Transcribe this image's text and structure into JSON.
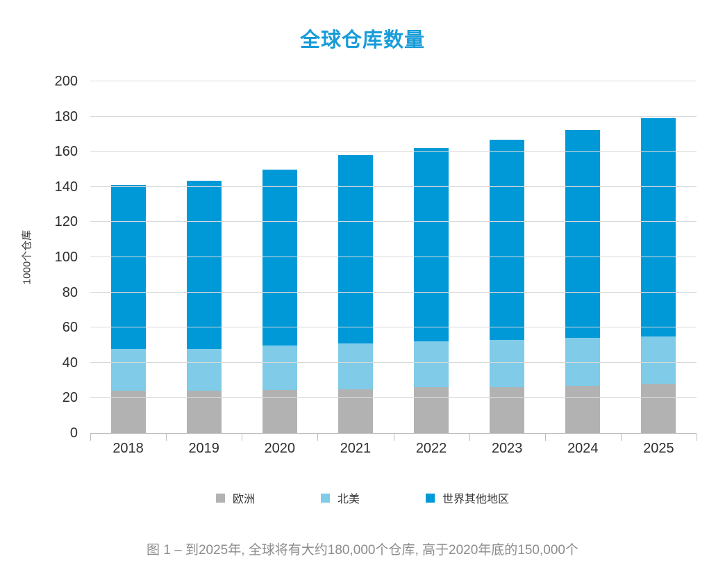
{
  "title": "全球仓库数量",
  "caption": "图 1 – 到2025年, 全球将有大约180,000个仓库, 高于2020年底的150,000个",
  "colors": {
    "title": "#189cd9",
    "europe": "#b2b2b2",
    "north_america": "#7fcbe8",
    "rest_of_world": "#0099d8",
    "gridline": "#d9d9d9",
    "axis": "#bdbdbd",
    "tick_label": "#2e2e2e",
    "caption": "#8c8c8c"
  },
  "chart_data": {
    "type": "bar",
    "stacked": true,
    "title": "全球仓库数量",
    "xlabel": "",
    "ylabel": "1000个仓库",
    "categories": [
      "2018",
      "2019",
      "2020",
      "2021",
      "2022",
      "2023",
      "2024",
      "2025"
    ],
    "series": [
      {
        "name": "欧洲",
        "color": "#b2b2b2",
        "values": [
          24,
          24,
          24.5,
          25,
          26,
          26,
          27,
          28
        ]
      },
      {
        "name": "北美",
        "color": "#7fcbe8",
        "values": [
          24,
          24,
          25.5,
          26,
          26,
          27,
          27,
          27
        ]
      },
      {
        "name": "世界其他地区",
        "color": "#0099d8",
        "values": [
          93,
          95.5,
          100,
          107,
          110,
          114,
          118.5,
          124
        ]
      }
    ],
    "totals": [
      141,
      143.5,
      150,
      158,
      162,
      167,
      172.5,
      179
    ],
    "ylim": [
      0,
      200
    ],
    "yticks": [
      0,
      20,
      40,
      60,
      80,
      100,
      120,
      140,
      160,
      180,
      200
    ],
    "grid": true,
    "legend_position": "bottom"
  },
  "legend": {
    "items": [
      {
        "label": "欧洲",
        "color": "#b2b2b2"
      },
      {
        "label": "北美",
        "color": "#7fcbe8"
      },
      {
        "label": "世界其他地区",
        "color": "#0099d8"
      }
    ]
  }
}
